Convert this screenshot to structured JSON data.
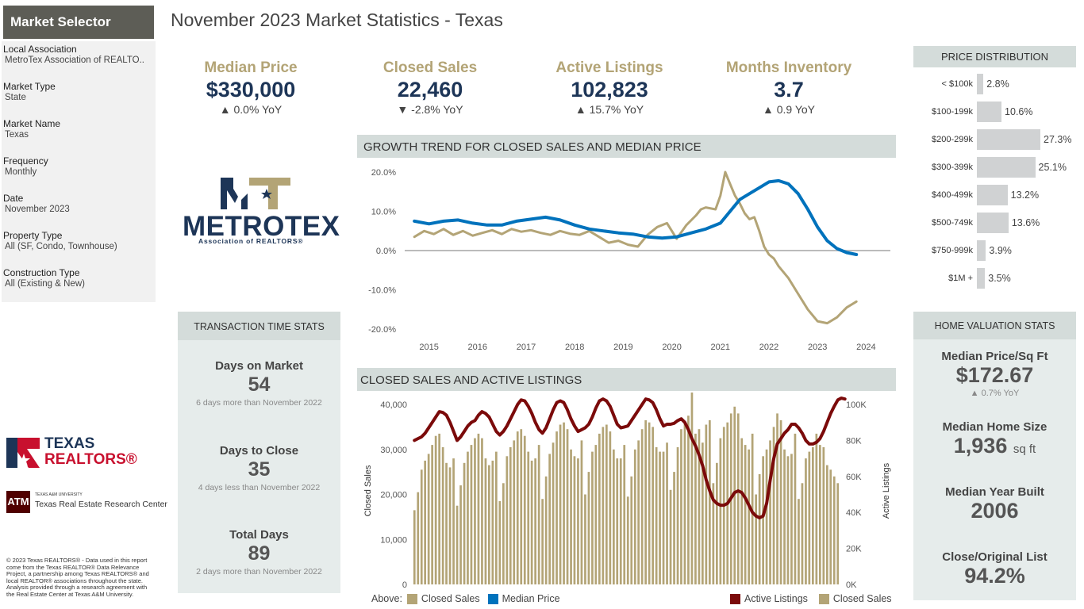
{
  "sidebar": {
    "title": "Market Selector",
    "filters": [
      {
        "label": "Local Association",
        "value": "MetroTex Association of REALTO.."
      },
      {
        "label": "Market Type",
        "value": "State"
      },
      {
        "label": "Market Name",
        "value": "Texas"
      },
      {
        "label": "Frequency",
        "value": "Monthly"
      },
      {
        "label": "Date",
        "value": "November 2023"
      },
      {
        "label": "Property Type",
        "value": "All (SF, Condo, Townhouse)"
      },
      {
        "label": "Construction Type",
        "value": "All (Existing & New)"
      }
    ]
  },
  "page_title": "November 2023 Market Statistics - Texas",
  "kpis": [
    {
      "title": "Median Price",
      "value": "$330,000",
      "change": "▲ 0.0% YoY"
    },
    {
      "title": "Closed Sales",
      "value": "22,460",
      "change": "▼ -2.8% YoY"
    },
    {
      "title": "Active Listings",
      "value": "102,823",
      "change": "▲ 15.7% YoY"
    },
    {
      "title": "Months Inventory",
      "value": "3.7",
      "change": "▲ 0.9 YoY"
    }
  ],
  "logos": {
    "metrotex": {
      "wordmark": "METROTEX",
      "sub": "Association of REALTORS®"
    },
    "texas_realtors": {
      "line1": "TEXAS",
      "line2": "REALTORS®"
    },
    "tamu": {
      "line1": "TEXAS A&M UNIVERSITY",
      "line2": "Texas Real Estate Research Center"
    }
  },
  "transaction": {
    "header": "TRANSACTION TIME STATS",
    "items": [
      {
        "title": "Days on Market",
        "value": "54",
        "note": "6 days more than November 2022"
      },
      {
        "title": "Days to Close",
        "value": "35",
        "note": "4 days less than November 2022"
      },
      {
        "title": "Total Days",
        "value": "89",
        "note": "2 days more than November 2022"
      }
    ]
  },
  "copyright": "© 2023 Texas REALTORS® - Data used in this report come from the Texas REALTOR® Data Relevance Project, a partnership among Texas REALTORS® and local REALTOR® associations throughout the state. Analysis provided through a research agreement with the Real Estate Center at Texas A&M University.",
  "price_distribution": {
    "header": "PRICE DISTRIBUTION",
    "rows": [
      {
        "label": "< $100k",
        "pct": 2.8,
        "text": "2.8%"
      },
      {
        "label": "$100-199k",
        "pct": 10.6,
        "text": "10.6%"
      },
      {
        "label": "$200-299k",
        "pct": 27.3,
        "text": "27.3%"
      },
      {
        "label": "$300-399k",
        "pct": 25.1,
        "text": "25.1%"
      },
      {
        "label": "$400-499k",
        "pct": 13.2,
        "text": "13.2%"
      },
      {
        "label": "$500-749k",
        "pct": 13.6,
        "text": "13.6%"
      },
      {
        "label": "$750-999k",
        "pct": 3.9,
        "text": "3.9%"
      },
      {
        "label": "$1M +",
        "pct": 3.5,
        "text": "3.5%"
      }
    ]
  },
  "home_valuation": {
    "header": "HOME VALUATION STATS",
    "items": [
      {
        "title": "Median Price/Sq Ft",
        "value": "$172.67",
        "unit": "",
        "change": "▲ 0.7% YoY"
      },
      {
        "title": "Median Home Size",
        "value": "1,936",
        "unit": "sq ft",
        "change": ""
      },
      {
        "title": "Median Year Built",
        "value": "2006",
        "unit": "",
        "change": ""
      },
      {
        "title": "Close/Original List",
        "value": "94.2%",
        "unit": "",
        "change": ""
      }
    ]
  },
  "colors": {
    "gold": "#b3a476",
    "blue": "#0072bc",
    "maroon": "#7b0a0a",
    "navy": "#1d3557"
  },
  "chart_data": [
    {
      "type": "line",
      "title": "GROWTH TREND FOR CLOSED SALES AND MEDIAN PRICE",
      "xlabel": "",
      "ylabel": "",
      "x_ticks": [
        "2015",
        "2016",
        "2017",
        "2018",
        "2019",
        "2020",
        "2021",
        "2022",
        "2023",
        "2024"
      ],
      "y_ticks": [
        "20.0%",
        "10.0%",
        "0.0%",
        "-10.0%",
        "-20.0%"
      ],
      "ylim": [
        -20,
        20
      ],
      "xlim": [
        2014.5,
        2024.5
      ],
      "grid": false,
      "legend_placement": "bottom-left",
      "legend_title": "Above:",
      "series": [
        {
          "name": "Closed Sales",
          "color": "#b3a476",
          "x": [
            2014.7,
            2014.9,
            2015.1,
            2015.3,
            2015.5,
            2015.7,
            2015.9,
            2016.1,
            2016.3,
            2016.5,
            2016.7,
            2016.9,
            2017.1,
            2017.3,
            2017.5,
            2017.7,
            2017.9,
            2018.1,
            2018.3,
            2018.5,
            2018.7,
            2018.9,
            2019.1,
            2019.3,
            2019.5,
            2019.7,
            2019.9,
            2020.1,
            2020.3,
            2020.5,
            2020.6,
            2020.7,
            2020.9,
            2021.0,
            2021.1,
            2021.2,
            2021.3,
            2021.4,
            2021.5,
            2021.6,
            2021.7,
            2021.8,
            2021.9,
            2022.0,
            2022.1,
            2022.2,
            2022.4,
            2022.6,
            2022.8,
            2023.0,
            2023.2,
            2023.4,
            2023.6,
            2023.8
          ],
          "y": [
            3.5,
            5.0,
            4.2,
            5.5,
            4.0,
            5.0,
            3.8,
            4.5,
            5.2,
            4.2,
            5.5,
            4.8,
            5.2,
            4.5,
            4.0,
            5.0,
            4.3,
            4.0,
            5.0,
            3.5,
            2.0,
            2.5,
            1.5,
            1.0,
            4.0,
            6.0,
            7.0,
            3.0,
            6.5,
            9.0,
            10.5,
            11.0,
            10.5,
            14.0,
            20.0,
            17.0,
            14.0,
            12.0,
            9.5,
            8.0,
            8.5,
            5.0,
            1.0,
            -1.0,
            -2.0,
            -4.0,
            -7.0,
            -11.0,
            -15.0,
            -18.0,
            -18.5,
            -17.0,
            -14.5,
            -13.0
          ]
        },
        {
          "name": "Median Price",
          "color": "#0072bc",
          "x": [
            2014.7,
            2015.0,
            2015.3,
            2015.6,
            2015.9,
            2016.2,
            2016.5,
            2016.8,
            2017.1,
            2017.4,
            2017.7,
            2018.0,
            2018.3,
            2018.6,
            2018.9,
            2019.2,
            2019.5,
            2019.8,
            2020.1,
            2020.4,
            2020.7,
            2021.0,
            2021.2,
            2021.4,
            2021.6,
            2021.8,
            2022.0,
            2022.2,
            2022.4,
            2022.6,
            2022.8,
            2023.0,
            2023.2,
            2023.4,
            2023.6,
            2023.8
          ],
          "y": [
            7.5,
            6.8,
            7.5,
            7.8,
            7.0,
            6.5,
            6.5,
            7.5,
            8.0,
            8.5,
            7.8,
            6.5,
            5.5,
            5.0,
            4.5,
            4.2,
            3.5,
            3.2,
            3.5,
            4.5,
            5.5,
            7.0,
            10.0,
            13.0,
            14.5,
            16.0,
            17.5,
            17.8,
            17.0,
            14.5,
            10.5,
            6.0,
            2.5,
            0.5,
            -0.5,
            -1.0
          ]
        }
      ]
    },
    {
      "type": "bar",
      "title": "CLOSED SALES AND ACTIVE LISTINGS",
      "xlabel": "",
      "ylabel": "Closed Sales",
      "y2label": "Active Listings",
      "ylim": [
        0,
        40000
      ],
      "y_ticks": [
        "40,000",
        "30,000",
        "20,000",
        "10,000",
        "0"
      ],
      "y2lim": [
        0,
        100000
      ],
      "y2_ticks": [
        "100K",
        "80K",
        "60K",
        "40K",
        "20K",
        "0K"
      ],
      "grid": false,
      "legend_placement": "bottom-right",
      "series": [
        {
          "name": "Closed Sales",
          "type": "bar",
          "color": "#b3a476",
          "values": [
            16500,
            20500,
            25500,
            27500,
            29000,
            31000,
            33000,
            33500,
            30500,
            27000,
            26000,
            28000,
            17500,
            22000,
            27000,
            29500,
            31000,
            32500,
            33500,
            32500,
            28000,
            26500,
            27500,
            29500,
            18500,
            22500,
            28500,
            30500,
            32000,
            34000,
            34500,
            33000,
            29500,
            27500,
            28000,
            31000,
            19000,
            24000,
            29000,
            31500,
            34000,
            35500,
            36000,
            34500,
            30000,
            28500,
            28000,
            32000,
            20000,
            25000,
            29500,
            31000,
            33500,
            35000,
            35500,
            34000,
            30000,
            28000,
            28000,
            31000,
            19500,
            24000,
            30000,
            32000,
            34500,
            36500,
            36000,
            35000,
            30500,
            29500,
            29500,
            31500,
            21000,
            25000,
            30500,
            34500,
            36000,
            37500,
            43500,
            33500,
            34500,
            31500,
            35500,
            36500,
            22500,
            27000,
            32500,
            35000,
            36000,
            38000,
            39500,
            38000,
            32500,
            31000,
            30000,
            33500,
            20000,
            24500,
            28500,
            30000,
            32000,
            35000,
            38000,
            36500,
            30000,
            28500,
            29000,
            33500,
            19000,
            22500,
            28000,
            29500,
            30500,
            33500,
            31000,
            30500,
            26500,
            25500,
            24000,
            22500
          ]
        },
        {
          "name": "Active Listings",
          "type": "line",
          "axis": "y2",
          "color": "#7b0a0a",
          "values": [
            80000,
            81000,
            82000,
            84000,
            87000,
            90000,
            93000,
            96000,
            95500,
            94000,
            90000,
            85000,
            80000,
            82000,
            85000,
            88000,
            90000,
            91000,
            94000,
            96000,
            95000,
            93000,
            89000,
            85000,
            83000,
            85000,
            88000,
            92000,
            96000,
            100000,
            102500,
            102000,
            99000,
            95000,
            90000,
            86000,
            84000,
            87000,
            92000,
            97000,
            101000,
            102000,
            101000,
            97000,
            92000,
            88000,
            85000,
            86000,
            87000,
            89000,
            93000,
            98000,
            102000,
            103000,
            102000,
            99000,
            94000,
            89000,
            87000,
            87500,
            88000,
            91000,
            94000,
            97000,
            100000,
            103000,
            102500,
            101000,
            97000,
            92000,
            88000,
            89000,
            89000,
            89500,
            91000,
            92000,
            90000,
            86000,
            81000,
            77000,
            72000,
            66000,
            58000,
            52000,
            47000,
            45000,
            44000,
            44000,
            45000,
            48000,
            51000,
            52000,
            51000,
            48000,
            44000,
            40000,
            38000,
            37000,
            38000,
            45000,
            58000,
            70000,
            78000,
            81000,
            84000,
            86000,
            89000,
            89000,
            87000,
            84000,
            80000,
            78000,
            78000,
            79000,
            81000,
            85000,
            90000,
            95000,
            99000,
            102500,
            103500,
            103000
          ]
        }
      ]
    }
  ]
}
